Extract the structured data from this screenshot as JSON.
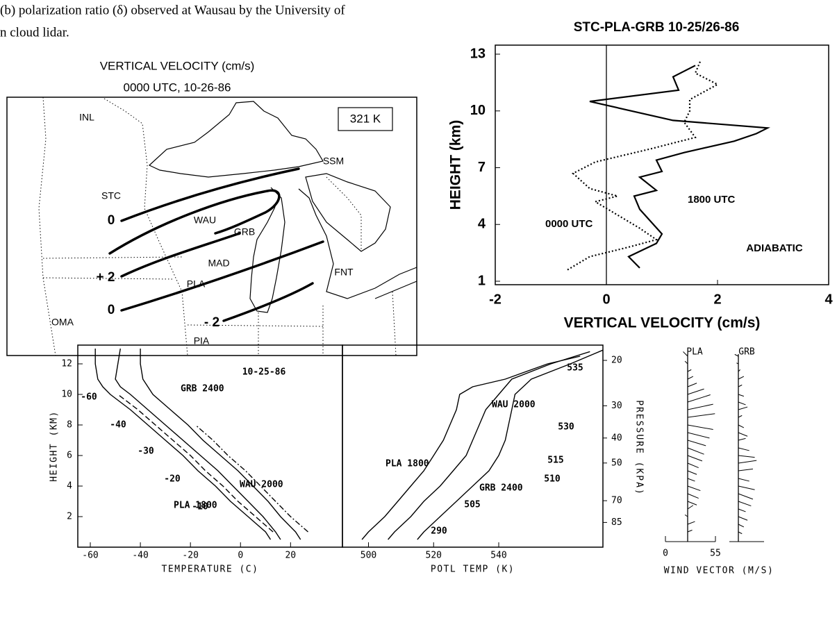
{
  "caption": {
    "lines": [
      "(b) polarization ratio (δ) observed at Wausau by the University of",
      "n cloud lidar."
    ]
  },
  "map": {
    "title": "VERTICAL VELOCITY  (cm/s)",
    "subtitle": "0000 UTC,  10-26-86",
    "isentrope_label": "321 K",
    "stations": [
      "INL",
      "SSM",
      "STC",
      "WAU",
      "GRB",
      "MAD",
      "PLA",
      "FNT",
      "OMA",
      "PIA"
    ],
    "contour_labels": [
      "0",
      "+ 2",
      "0",
      "- 2"
    ]
  },
  "chart_data": [
    {
      "type": "profile",
      "title": "STC-PLA-GRB   10-25/26-86",
      "x_label": "VERTICAL VELOCITY   (cm/s)",
      "y_label": "HEIGHT    (km)",
      "xlim": [
        -2,
        4
      ],
      "xticks": [
        -2,
        0,
        2,
        4
      ],
      "ylim": [
        1,
        13
      ],
      "yticks": [
        1,
        4,
        7,
        10,
        13
      ],
      "zero_line": true,
      "series": [
        {
          "name": "0000 UTC",
          "style": "dotted",
          "color": "#000",
          "x": [
            -0.7,
            -0.3,
            0.4,
            0.9,
            0.6,
            0.2,
            -0.2,
            0.2,
            -0.3,
            -0.6,
            -0.2,
            0.8,
            1.6,
            1.4,
            1.5,
            1.5,
            2.0,
            1.6,
            1.7
          ],
          "y": [
            1.6,
            2.3,
            2.8,
            3.2,
            3.8,
            4.5,
            5.2,
            5.5,
            5.9,
            6.7,
            7.3,
            8.0,
            8.6,
            9.4,
            10.0,
            10.6,
            11.4,
            12.0,
            12.7
          ]
        },
        {
          "name": "1800 UTC",
          "style": "solid",
          "color": "#000",
          "x": [
            0.6,
            0.4,
            0.9,
            1.0,
            0.6,
            0.5,
            0.9,
            0.6,
            1.0,
            0.9,
            1.4,
            2.3,
            2.7,
            2.9,
            1.2,
            -0.3,
            1.3,
            1.2,
            1.6
          ],
          "y": [
            1.7,
            2.3,
            3.0,
            3.5,
            4.8,
            5.5,
            5.8,
            6.5,
            6.8,
            7.4,
            7.8,
            8.4,
            8.8,
            9.1,
            9.5,
            10.5,
            11.1,
            11.8,
            12.4
          ]
        }
      ],
      "annotations": [
        "ADIABATIC"
      ]
    },
    {
      "type": "profile",
      "x_label": "TEMPERATURE  (C)",
      "y_label": "HEIGHT  (KM)",
      "xlim": [
        -65,
        41
      ],
      "xticks": [
        -60,
        -40,
        -20,
        0,
        20
      ],
      "ylim": [
        0,
        13
      ],
      "yticks": [
        2,
        4,
        6,
        8,
        10,
        12
      ],
      "series": [
        {
          "name": "PLA 1800",
          "style": "solid",
          "color": "#000",
          "x": [
            12,
            10,
            3,
            -4,
            -10,
            -17,
            -23,
            -30,
            -37,
            -44,
            -52,
            -55,
            -57,
            -58,
            -58
          ],
          "y": [
            0.5,
            1,
            2,
            3,
            4,
            5,
            6,
            7,
            8,
            9,
            10,
            10.5,
            11,
            12,
            13
          ]
        },
        {
          "name": "WAU 2000",
          "style": "solid",
          "color": "#000",
          "x": [
            16,
            14,
            9,
            3,
            -3,
            -9,
            -16,
            -23,
            -30,
            -37,
            -44,
            -48,
            -50,
            -49,
            -48
          ],
          "y": [
            0.5,
            1,
            2,
            3,
            4,
            5,
            6,
            7,
            8,
            9,
            10,
            10.5,
            11,
            12,
            13
          ]
        },
        {
          "name": "GRB 2400",
          "style": "solid",
          "color": "#000",
          "x": [
            24,
            22,
            16,
            11,
            5,
            -1,
            -8,
            -15,
            -21,
            -28,
            -35,
            -39,
            -40,
            -40
          ],
          "y": [
            0.5,
            1,
            2,
            3,
            4,
            5,
            6,
            7,
            8,
            9,
            10,
            11,
            12,
            13
          ]
        },
        {
          "style": "dashed",
          "color": "#000",
          "x": [
            13,
            6,
            -1,
            -7,
            -14,
            -20,
            -27,
            -34,
            -41,
            -49
          ],
          "y": [
            1,
            2,
            3,
            4,
            5,
            6,
            7,
            8,
            9,
            10
          ]
        },
        {
          "style": "dashdot",
          "color": "#000",
          "x": [
            27,
            20,
            14,
            8,
            2,
            -5,
            -11,
            -18
          ],
          "y": [
            1,
            2,
            3,
            4,
            5,
            6,
            7,
            8
          ]
        }
      ],
      "annotations": [
        "10-25-86",
        "-60",
        "-40",
        "-30",
        "-20",
        "-10"
      ]
    },
    {
      "type": "profile",
      "x_label": "POTL  TEMP  (K)",
      "y2_label": "PRESSURE  (KPA)",
      "xlim": [
        492,
        572
      ],
      "xticks": [
        500,
        520,
        540
      ],
      "ylim": [
        0,
        13
      ],
      "y2scale": "log",
      "y2lim": [
        106,
        18
      ],
      "y2ticks": [
        20,
        30,
        40,
        50,
        70,
        85
      ],
      "series": [
        {
          "name": "PLA 1800",
          "style": "solid",
          "color": "#000",
          "x": [
            498,
            500,
            505,
            509,
            513,
            517,
            520,
            523,
            525,
            527,
            528,
            532,
            542,
            555,
            565
          ],
          "y": [
            0.5,
            1,
            2,
            3,
            4,
            5,
            6,
            7,
            8,
            9,
            10,
            10.5,
            11,
            12,
            12.5
          ]
        },
        {
          "name": "WAU 2000",
          "style": "solid",
          "color": "#000",
          "x": [
            506,
            508,
            513,
            517,
            522,
            526,
            530,
            532,
            534,
            536,
            540,
            544,
            556,
            568
          ],
          "y": [
            0.5,
            1,
            2,
            3,
            4,
            5,
            6,
            7,
            8,
            9,
            10,
            11,
            12,
            12.8
          ]
        },
        {
          "name": "GRB 2400",
          "style": "solid",
          "color": "#000",
          "x": [
            515,
            517,
            522,
            527,
            532,
            537,
            540,
            542,
            543,
            544,
            545,
            550,
            562,
            572
          ],
          "y": [
            0.5,
            1,
            2,
            3,
            4,
            5,
            6,
            7,
            8,
            9,
            10,
            11,
            12,
            12.9
          ]
        }
      ],
      "annotations": [
        "535",
        "530",
        "515",
        "510",
        "505",
        "290"
      ]
    },
    {
      "type": "wind",
      "x_label": "WIND  VECTOR  (M/S)",
      "xlim": [
        0,
        55
      ],
      "xticks": [
        0,
        55
      ],
      "ylim": [
        0,
        13
      ],
      "series": [
        {
          "name": "PLA",
          "heights": [
            1,
            1.5,
            2,
            2.5,
            3,
            3.5,
            4,
            4.5,
            5,
            5.5,
            6,
            6.5,
            7,
            7.5,
            8,
            8.5,
            9,
            9.5,
            10,
            10.5,
            11,
            11.5,
            12,
            12.5
          ],
          "u": [
            5,
            8,
            -3,
            6,
            10,
            12,
            14,
            8,
            10,
            12,
            16,
            18,
            20,
            24,
            28,
            30,
            28,
            25,
            18,
            10,
            6,
            4,
            -3,
            -5
          ],
          "v": [
            2,
            3,
            2,
            4,
            -4,
            -5,
            -5,
            -3,
            -4,
            -5,
            -6,
            -7,
            -6,
            -6,
            -5,
            4,
            6,
            8,
            6,
            4,
            3,
            2,
            3,
            5
          ]
        },
        {
          "name": "GRB",
          "heights": [
            1,
            1.5,
            2,
            2.5,
            3,
            3.5,
            4,
            4.5,
            5,
            5.5,
            6,
            6.5,
            7,
            7.5,
            8,
            8.5,
            9,
            9.5,
            10,
            10.5,
            11,
            11.5,
            12,
            12.5
          ],
          "u": [
            4,
            6,
            10,
            8,
            14,
            16,
            18,
            12,
            16,
            20,
            18,
            12,
            8,
            10,
            6,
            4,
            10,
            8,
            6,
            4,
            6,
            2,
            -2,
            -4
          ],
          "v": [
            -2,
            -3,
            -4,
            -3,
            -5,
            -6,
            -4,
            -3,
            2,
            3,
            -2,
            -3,
            2,
            -4,
            -3,
            2,
            3,
            -3,
            -2,
            2,
            3,
            2,
            1,
            2
          ]
        }
      ]
    }
  ]
}
